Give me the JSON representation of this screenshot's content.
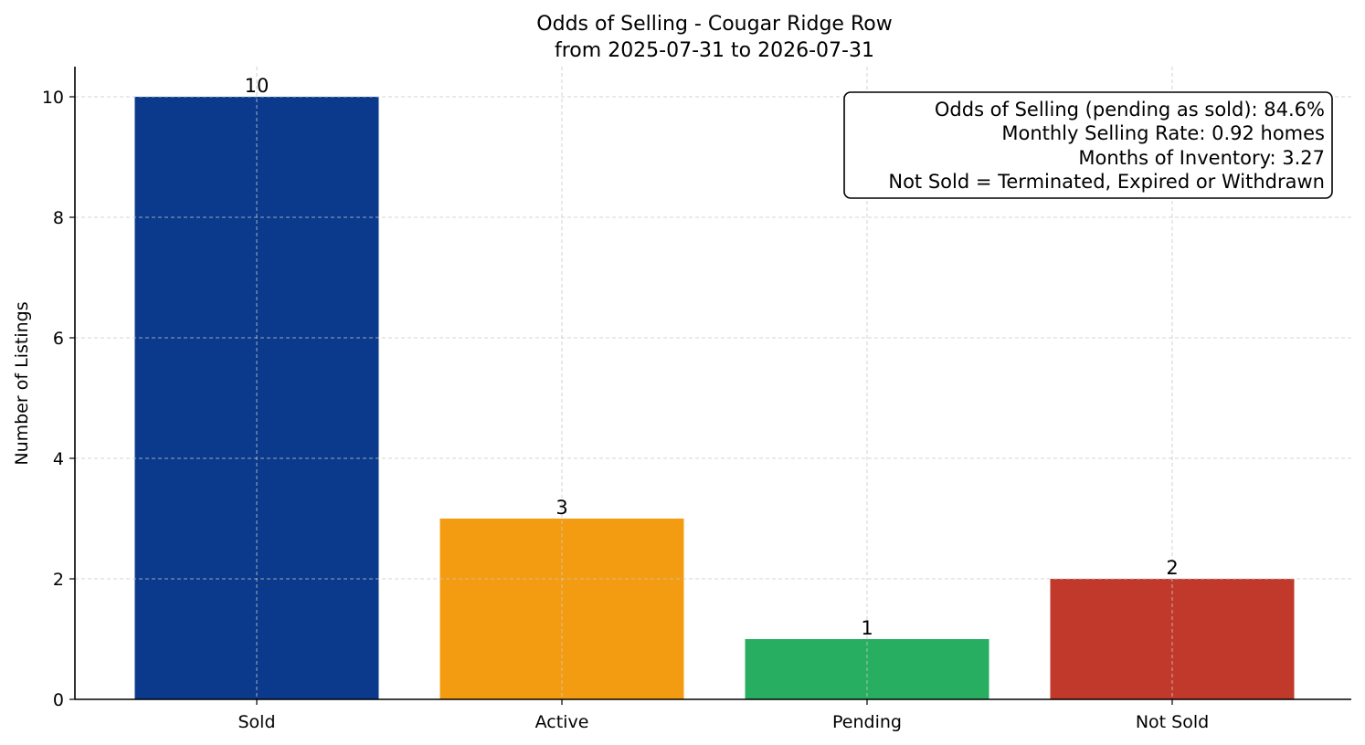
{
  "chart_data": {
    "type": "bar",
    "title": "Odds of Selling - Cougar Ridge Row",
    "subtitle": "from 2025-07-31 to 2026-07-31",
    "xlabel": "",
    "ylabel": "Number of Listings",
    "categories": [
      "Sold",
      "Active",
      "Pending",
      "Not Sold"
    ],
    "values": [
      10,
      3,
      1,
      2
    ],
    "bar_labels": [
      "10",
      "3",
      "1",
      "2"
    ],
    "colors": [
      "#0b3a8c",
      "#f39c12",
      "#27ae60",
      "#c0392b"
    ],
    "ylim": [
      0,
      10.5
    ],
    "yticks": [
      0,
      2,
      4,
      6,
      8,
      10
    ],
    "grid": true,
    "info_box": {
      "placement": "top-right",
      "lines": [
        "Odds of Selling (pending as sold): 84.6%",
        "Monthly Selling Rate: 0.92 homes",
        "Months of Inventory: 3.27",
        "Not Sold = Terminated, Expired or Withdrawn"
      ]
    }
  }
}
